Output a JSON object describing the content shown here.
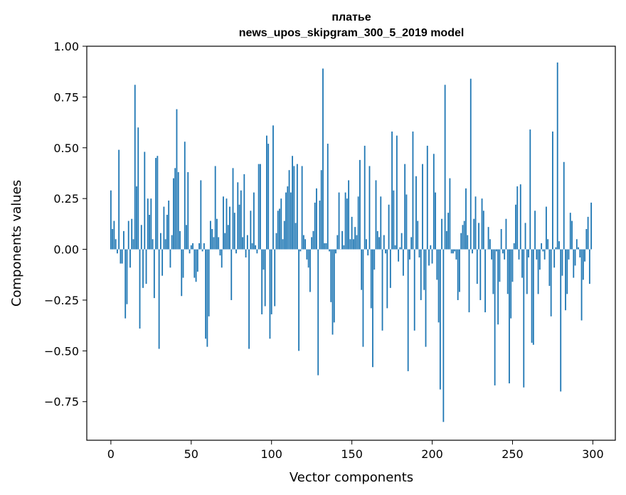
{
  "chart_data": {
    "type": "bar",
    "title": "платье",
    "subtitle": "news_upos_skipgram_300_5_2019 model",
    "xlabel": "Vector components",
    "ylabel": "Components values",
    "xlim": [
      -15,
      314
    ],
    "ylim": [
      -0.94,
      1.0
    ],
    "xticks": [
      0,
      50,
      100,
      150,
      200,
      250,
      300
    ],
    "xtick_labels": [
      "0",
      "50",
      "100",
      "150",
      "200",
      "250",
      "300"
    ],
    "yticks": [
      1.0,
      0.75,
      0.5,
      0.25,
      0.0,
      -0.25,
      -0.5,
      -0.75
    ],
    "ytick_labels": [
      "1.00",
      "0.75",
      "0.50",
      "0.25",
      "0.00",
      "−0.25",
      "−0.50",
      "−0.75"
    ],
    "bar_color": "#1f77b4",
    "grid": false,
    "values": [
      0.29,
      0.1,
      0.14,
      0.05,
      -0.02,
      0.49,
      -0.07,
      -0.07,
      0.09,
      -0.34,
      -0.27,
      0.14,
      -0.09,
      0.15,
      0.05,
      0.81,
      0.31,
      0.6,
      -0.39,
      0.12,
      -0.19,
      0.48,
      -0.17,
      0.25,
      0.17,
      0.25,
      0.05,
      -0.24,
      0.45,
      0.46,
      -0.49,
      0.08,
      -0.13,
      0.21,
      0.05,
      0.17,
      0.24,
      -0.09,
      0.07,
      0.35,
      0.4,
      0.69,
      0.38,
      0.09,
      -0.23,
      -0.14,
      0.53,
      0.12,
      0.38,
      -0.02,
      0.02,
      0.03,
      -0.14,
      -0.16,
      -0.11,
      0.03,
      0.34,
      -0.01,
      0.03,
      -0.44,
      -0.48,
      -0.33,
      0.14,
      0.1,
      0.06,
      0.41,
      0.15,
      0.06,
      -0.03,
      -0.09,
      0.26,
      0.08,
      0.25,
      0.12,
      0.21,
      -0.25,
      0.4,
      0.18,
      -0.02,
      0.33,
      0.22,
      0.29,
      0.06,
      0.37,
      -0.04,
      0.07,
      -0.49,
      0.19,
      0.03,
      0.28,
      0.02,
      -0.02,
      0.42,
      0.42,
      -0.32,
      -0.1,
      -0.28,
      0.56,
      0.52,
      -0.44,
      -0.32,
      0.61,
      -0.28,
      0.08,
      0.19,
      0.2,
      0.25,
      0.05,
      0.14,
      0.28,
      0.31,
      0.39,
      0.28,
      0.46,
      0.41,
      0.13,
      0.42,
      -0.5,
      -0.01,
      0.41,
      0.07,
      0.05,
      -0.05,
      -0.09,
      -0.21,
      0.06,
      0.09,
      0.23,
      0.3,
      -0.62,
      0.24,
      0.39,
      0.89,
      0.03,
      0.03,
      0.52,
      -0.01,
      -0.26,
      -0.42,
      -0.36,
      -0.02,
      0.07,
      0.28,
      0.0,
      0.09,
      0.02,
      0.28,
      0.25,
      0.34,
      0.05,
      0.16,
      0.05,
      0.11,
      0.07,
      0.26,
      0.44,
      -0.2,
      -0.48,
      0.51,
      0.05,
      -0.03,
      0.41,
      -0.29,
      -0.58,
      -0.1,
      0.34,
      0.09,
      0.06,
      0.26,
      -0.4,
      0.07,
      -0.02,
      -0.29,
      0.22,
      -0.19,
      0.58,
      0.29,
      0.02,
      0.56,
      -0.06,
      0.01,
      0.08,
      -0.13,
      0.42,
      0.27,
      -0.6,
      -0.05,
      0.06,
      0.58,
      -0.4,
      0.36,
      0.14,
      -0.04,
      -0.25,
      0.42,
      -0.2,
      -0.48,
      0.51,
      -0.08,
      0.02,
      -0.07,
      0.47,
      0.28,
      -0.15,
      -0.36,
      -0.69,
      0.15,
      -0.85,
      0.81,
      0.09,
      0.18,
      0.35,
      -0.02,
      -0.02,
      -0.01,
      -0.05,
      -0.25,
      -0.21,
      0.08,
      0.12,
      0.14,
      0.3,
      0.07,
      -0.31,
      0.84,
      -0.02,
      0.15,
      0.26,
      -0.17,
      0.13,
      -0.25,
      0.25,
      0.19,
      -0.31,
      0.0,
      0.11,
      0.05,
      -0.05,
      -0.22,
      -0.67,
      -0.01,
      -0.37,
      -0.16,
      0.1,
      -0.02,
      -0.05,
      0.15,
      -0.22,
      -0.66,
      -0.34,
      -0.16,
      0.03,
      0.22,
      0.31,
      -0.05,
      0.32,
      -0.14,
      -0.68,
      0.13,
      -0.22,
      -0.04,
      0.59,
      -0.46,
      -0.47,
      0.19,
      -0.05,
      -0.22,
      -0.1,
      0.03,
      -0.01,
      -0.05,
      0.21,
      0.05,
      -0.18,
      -0.33,
      0.58,
      -0.09,
      0.01,
      0.92,
      0.04,
      -0.7,
      -0.13,
      0.43,
      -0.3,
      -0.22,
      -0.05,
      0.18,
      0.14,
      -0.14,
      -0.08,
      0.05,
      0.01,
      -0.04,
      -0.35,
      -0.15,
      -0.06,
      0.1,
      0.16,
      -0.17,
      0.23
    ]
  }
}
